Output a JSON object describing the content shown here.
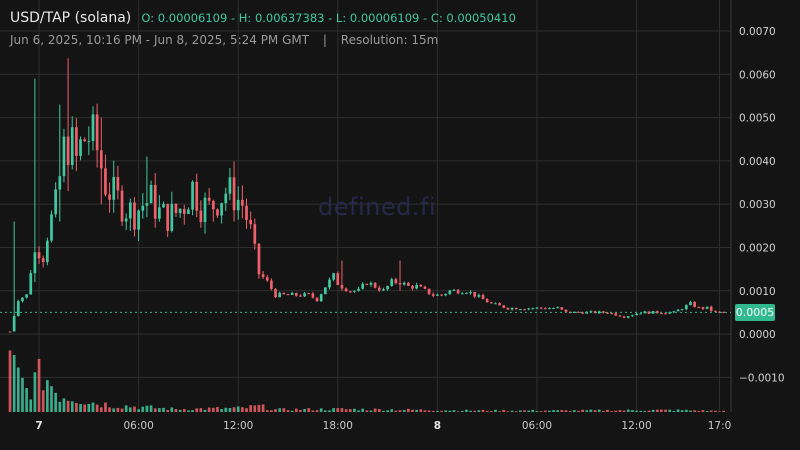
{
  "header": {
    "symbol": "USD/TAP (solana)",
    "ohlc": "O: 0.00006109 - H: 0.00637383 - L: 0.00006109 - C: 0.00050410",
    "range": "Jun 6, 2025, 10:16 PM - Jun 8, 2025, 5:24 PM GMT",
    "separator": "|",
    "resolution": "Resolution: 15m"
  },
  "watermark": "defined.fi",
  "last_price_label": "0.0005",
  "colors": {
    "up": "#40c8a0",
    "down": "#f0606a",
    "background": "#141414",
    "grid": "#2e2e2e",
    "watermark": "#27284a"
  },
  "chart_data": {
    "type": "candlestick",
    "y_ticks": [
      "0.0070",
      "0.0060",
      "0.0050",
      "0.0040",
      "0.0030",
      "0.0020",
      "0.0010",
      "0.0000",
      "−0.0010"
    ],
    "ylim": [
      -0.0018,
      0.0073
    ],
    "x_ticks": [
      {
        "label": "7",
        "bold": true,
        "x": 1.75
      },
      {
        "label": "06:00",
        "bold": false,
        "x": 7.75
      },
      {
        "label": "12:00",
        "bold": false,
        "x": 13.75
      },
      {
        "label": "18:00",
        "bold": false,
        "x": 19.75
      },
      {
        "label": "8",
        "bold": true,
        "x": 25.75
      },
      {
        "label": "06:00",
        "bold": false,
        "x": 31.75
      },
      {
        "label": "12:00",
        "bold": false,
        "x": 37.75
      },
      {
        "label": "17:0",
        "bold": false,
        "x": 42.75
      }
    ],
    "xlim": [
      0,
      43.2
    ],
    "last_price": 0.0005,
    "price_path": [
      [
        0.0,
        6e-05
      ],
      [
        0.5,
        0.0008
      ],
      [
        1.0,
        0.0009
      ],
      [
        1.3,
        0.0016
      ],
      [
        1.6,
        0.002
      ],
      [
        2.0,
        0.0018
      ],
      [
        2.3,
        0.0024
      ],
      [
        2.8,
        0.003
      ],
      [
        3.2,
        0.0042
      ],
      [
        3.6,
        0.0045
      ],
      [
        4.0,
        0.004
      ],
      [
        4.4,
        0.0045
      ],
      [
        4.9,
        0.0046
      ],
      [
        5.3,
        0.0042
      ],
      [
        5.8,
        0.0034
      ],
      [
        6.5,
        0.0031
      ],
      [
        7.0,
        0.0029
      ],
      [
        7.5,
        0.0028
      ],
      [
        8.0,
        0.003
      ],
      [
        8.5,
        0.0031
      ],
      [
        9.0,
        0.0028
      ],
      [
        9.5,
        0.0027
      ],
      [
        10.0,
        0.0028
      ],
      [
        10.5,
        0.003
      ],
      [
        11.0,
        0.0034
      ],
      [
        11.5,
        0.003
      ],
      [
        12.0,
        0.0029
      ],
      [
        12.5,
        0.0031
      ],
      [
        13.0,
        0.0033
      ],
      [
        13.5,
        0.0032
      ],
      [
        14.0,
        0.003
      ],
      [
        14.5,
        0.0024
      ],
      [
        15.0,
        0.0014
      ],
      [
        15.5,
        0.0012
      ],
      [
        16.0,
        0.0009
      ],
      [
        16.5,
        0.0009
      ],
      [
        17.0,
        0.0009
      ],
      [
        17.5,
        0.0009
      ],
      [
        18.0,
        0.0009
      ],
      [
        18.5,
        0.0008
      ],
      [
        19.0,
        0.0011
      ],
      [
        19.5,
        0.0013
      ],
      [
        20.0,
        0.0011
      ],
      [
        20.5,
        0.001
      ],
      [
        21.0,
        0.001
      ],
      [
        21.5,
        0.0012
      ],
      [
        22.0,
        0.0011
      ],
      [
        22.5,
        0.001
      ],
      [
        23.0,
        0.0012
      ],
      [
        23.5,
        0.0012
      ],
      [
        24.0,
        0.0011
      ],
      [
        24.5,
        0.0011
      ],
      [
        25.0,
        0.001
      ],
      [
        25.5,
        0.0009
      ],
      [
        26.0,
        0.0009
      ],
      [
        26.5,
        0.001
      ],
      [
        27.0,
        0.001
      ],
      [
        27.5,
        0.001
      ],
      [
        28.0,
        0.0009
      ],
      [
        28.5,
        0.0008
      ],
      [
        29.0,
        0.0007
      ],
      [
        29.5,
        0.00065
      ],
      [
        30.0,
        0.0006
      ],
      [
        30.5,
        0.0006
      ],
      [
        31.0,
        0.0006
      ],
      [
        31.5,
        0.0006
      ],
      [
        32.0,
        0.0006
      ],
      [
        32.5,
        0.0006
      ],
      [
        33.0,
        0.0006
      ],
      [
        33.5,
        0.0005
      ],
      [
        34.0,
        0.0005
      ],
      [
        34.5,
        0.0005
      ],
      [
        35.0,
        0.0005
      ],
      [
        35.5,
        0.0005
      ],
      [
        36.0,
        0.0005
      ],
      [
        36.5,
        0.00045
      ],
      [
        37.0,
        0.0004
      ],
      [
        37.5,
        0.00045
      ],
      [
        38.0,
        0.0005
      ],
      [
        38.5,
        0.0005
      ],
      [
        39.0,
        0.0005
      ],
      [
        39.5,
        0.0005
      ],
      [
        40.0,
        0.0005
      ],
      [
        40.5,
        0.0006
      ],
      [
        41.0,
        0.0007
      ],
      [
        41.5,
        0.0006
      ],
      [
        42.0,
        0.0006
      ],
      [
        42.5,
        0.0005
      ],
      [
        43.0,
        0.0005
      ]
    ],
    "spikes": [
      {
        "x": 0.2,
        "high": 0.0026,
        "low": 6e-05
      },
      {
        "x": 1.5,
        "high": 0.0059,
        "low": 0.0012
      },
      {
        "x": 3.0,
        "high": 0.0053,
        "low": 0.0026
      },
      {
        "x": 3.6,
        "high": 0.00637,
        "low": 0.0033
      },
      {
        "x": 5.6,
        "high": 0.005,
        "low": 0.003
      },
      {
        "x": 8.2,
        "high": 0.0041,
        "low": 0.0027
      },
      {
        "x": 11.2,
        "high": 0.0037,
        "low": 0.0027
      },
      {
        "x": 13.6,
        "high": 0.0036,
        "low": 0.0026
      },
      {
        "x": 20.0,
        "high": 0.0017,
        "low": 0.001
      },
      {
        "x": 23.5,
        "high": 0.0017,
        "low": 0.001
      }
    ],
    "volume_profile": [
      [
        0.0,
        1.0
      ],
      [
        1.0,
        0.45
      ],
      [
        2.0,
        0.8
      ],
      [
        3.0,
        0.35
      ],
      [
        4.0,
        0.3
      ],
      [
        5.0,
        0.2
      ],
      [
        6.0,
        0.15
      ],
      [
        8.0,
        0.1
      ],
      [
        10.0,
        0.06
      ],
      [
        14.0,
        0.08
      ],
      [
        15.0,
        0.12
      ],
      [
        16.0,
        0.05
      ],
      [
        20.0,
        0.06
      ],
      [
        23.0,
        0.05
      ],
      [
        28.0,
        0.03
      ],
      [
        33.0,
        0.03
      ],
      [
        40.0,
        0.04
      ],
      [
        43.0,
        0.02
      ]
    ]
  }
}
